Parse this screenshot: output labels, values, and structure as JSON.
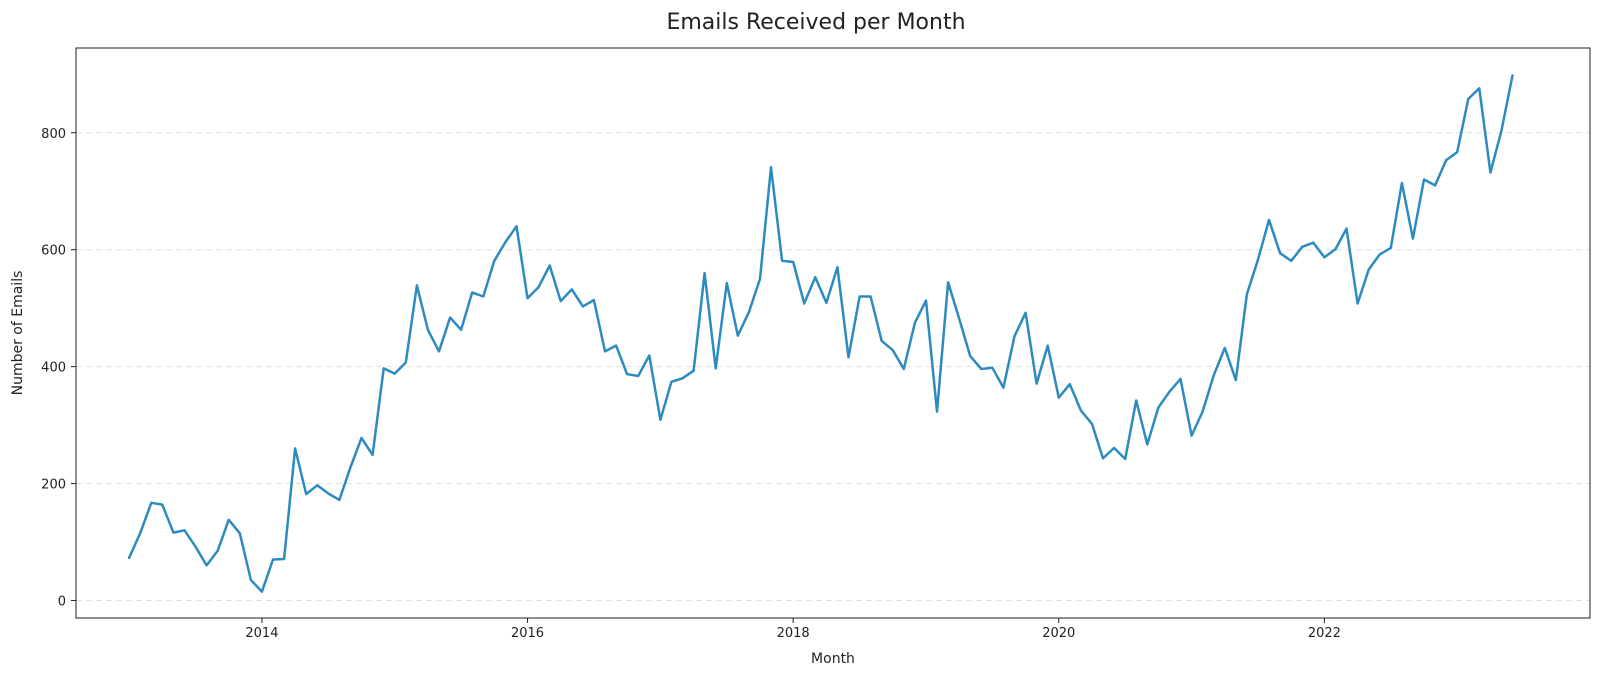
{
  "chart_data": {
    "type": "line",
    "title": "Emails Received per Month",
    "xlabel": "Month",
    "ylabel": "Number of Emails",
    "x_tick_labels": [
      "2014",
      "2016",
      "2018",
      "2020",
      "2022"
    ],
    "x_tick_values": [
      2014,
      2016,
      2018,
      2020,
      2022
    ],
    "y_ticks": [
      0,
      200,
      400,
      600,
      800
    ],
    "y_tick_labels": [
      "0",
      "200",
      "400",
      "600",
      "800"
    ],
    "xlim": [
      2012.6,
      2024.0
    ],
    "ylim": [
      -30,
      945
    ],
    "grid": "y-dashed",
    "color": "#2e8bc0",
    "series": [
      {
        "x": [
          "2013-01",
          "2013-02",
          "2013-03",
          "2013-04",
          "2013-05",
          "2013-06",
          "2013-07",
          "2013-08",
          "2013-09",
          "2013-10",
          "2013-11",
          "2013-12",
          "2014-01",
          "2014-02",
          "2014-03",
          "2014-04",
          "2014-05",
          "2014-06",
          "2014-07",
          "2014-08",
          "2014-09",
          "2014-10",
          "2014-11",
          "2014-12",
          "2015-01",
          "2015-02",
          "2015-03",
          "2015-04",
          "2015-05",
          "2015-06",
          "2015-07",
          "2015-08",
          "2015-09",
          "2015-10",
          "2015-11",
          "2015-12",
          "2016-01",
          "2016-02",
          "2016-03",
          "2016-04",
          "2016-05",
          "2016-06",
          "2016-07",
          "2016-08",
          "2016-09",
          "2016-10",
          "2016-11",
          "2016-12",
          "2017-01",
          "2017-02",
          "2017-03",
          "2017-04",
          "2017-05",
          "2017-06",
          "2017-07",
          "2017-08",
          "2017-09",
          "2017-10",
          "2017-11",
          "2017-12",
          "2018-01",
          "2018-02",
          "2018-03",
          "2018-04",
          "2018-05",
          "2018-06",
          "2018-07",
          "2018-08",
          "2018-09",
          "2018-10",
          "2018-11",
          "2018-12",
          "2019-01",
          "2019-02",
          "2019-03",
          "2019-04",
          "2019-05",
          "2019-06",
          "2019-07",
          "2019-08",
          "2019-09",
          "2019-10",
          "2019-11",
          "2019-12",
          "2020-01",
          "2020-02",
          "2020-03",
          "2020-04",
          "2020-05",
          "2020-06",
          "2020-07",
          "2020-08",
          "2020-09",
          "2020-10",
          "2020-11",
          "2020-12",
          "2021-01",
          "2021-02",
          "2021-03",
          "2021-04",
          "2021-05",
          "2021-06",
          "2021-07",
          "2021-08",
          "2021-09",
          "2021-10",
          "2021-11",
          "2021-12",
          "2022-01",
          "2022-02",
          "2022-03",
          "2022-04",
          "2022-05",
          "2022-06",
          "2022-07",
          "2022-08",
          "2022-09",
          "2022-10",
          "2022-11",
          "2022-12",
          "2023-01",
          "2023-02",
          "2023-03",
          "2023-04",
          "2023-05",
          "2023-06"
        ],
        "values": [
          73,
          115,
          167,
          164,
          116,
          120,
          92,
          60,
          85,
          138,
          115,
          35,
          15,
          70,
          71,
          260,
          182,
          197,
          183,
          172,
          228,
          278,
          249,
          397,
          388,
          407,
          539,
          463,
          426,
          484,
          463,
          527,
          520,
          581,
          613,
          640,
          517,
          536,
          573,
          512,
          532,
          503,
          514,
          426,
          436,
          387,
          384,
          419,
          309,
          374,
          380,
          393,
          560,
          397,
          543,
          453,
          493,
          550,
          741,
          581,
          579,
          508,
          553,
          509,
          570,
          416,
          520,
          520,
          444,
          428,
          396,
          475,
          513,
          323,
          544,
          482,
          418,
          396,
          398,
          364,
          452,
          492,
          371,
          436,
          347,
          370,
          325,
          302,
          243,
          261,
          242,
          342,
          267,
          330,
          357,
          379,
          282,
          323,
          385,
          432,
          377,
          524,
          583,
          651,
          594,
          581,
          605,
          612,
          587,
          601,
          636,
          508,
          566,
          592,
          603,
          714,
          619,
          720,
          710,
          753,
          767,
          858,
          876,
          732,
          804,
          898
        ]
      }
    ]
  }
}
